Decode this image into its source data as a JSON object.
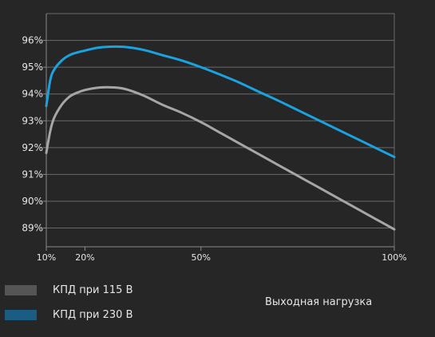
{
  "chart_data": {
    "type": "line",
    "xlabel": "Выходная нагрузка",
    "ylabel": "",
    "title": "",
    "x_ticks": [
      "10%",
      "20%",
      "50%",
      "100%"
    ],
    "y_ticks": [
      "96%",
      "95%",
      "94%",
      "93%",
      "92%",
      "91%",
      "90%",
      "89%"
    ],
    "xlim": [
      10,
      100
    ],
    "ylim": [
      88.3,
      97
    ],
    "grid": true,
    "legend_position": "bottom-left",
    "series": [
      {
        "name": "КПД при 115 В",
        "color": "#a6a6a6",
        "swatch_color": "#555555",
        "x": [
          10,
          11,
          12,
          14,
          16,
          18,
          20,
          23,
          26,
          30,
          35,
          40,
          45,
          50,
          55,
          60,
          65,
          70,
          75,
          80,
          85,
          90,
          95,
          100
        ],
        "y": [
          91.8,
          92.6,
          93.1,
          93.6,
          93.9,
          94.05,
          94.15,
          94.23,
          94.25,
          94.2,
          93.95,
          93.6,
          93.3,
          92.95,
          92.55,
          92.15,
          91.75,
          91.35,
          90.95,
          90.55,
          90.15,
          89.75,
          89.35,
          88.95
        ]
      },
      {
        "name": "КПД при 230 В",
        "color": "#1aa3e0",
        "swatch_color": "#1b5d82",
        "x": [
          10,
          11,
          12,
          14,
          16,
          18,
          20,
          23,
          26,
          30,
          35,
          40,
          45,
          50,
          55,
          60,
          65,
          70,
          75,
          80,
          85,
          90,
          95,
          100
        ],
        "y": [
          93.55,
          94.5,
          94.9,
          95.25,
          95.45,
          95.55,
          95.62,
          95.72,
          95.76,
          95.76,
          95.65,
          95.45,
          95.25,
          95.0,
          94.72,
          94.42,
          94.08,
          93.75,
          93.4,
          93.05,
          92.7,
          92.35,
          92.0,
          91.65
        ]
      }
    ]
  }
}
